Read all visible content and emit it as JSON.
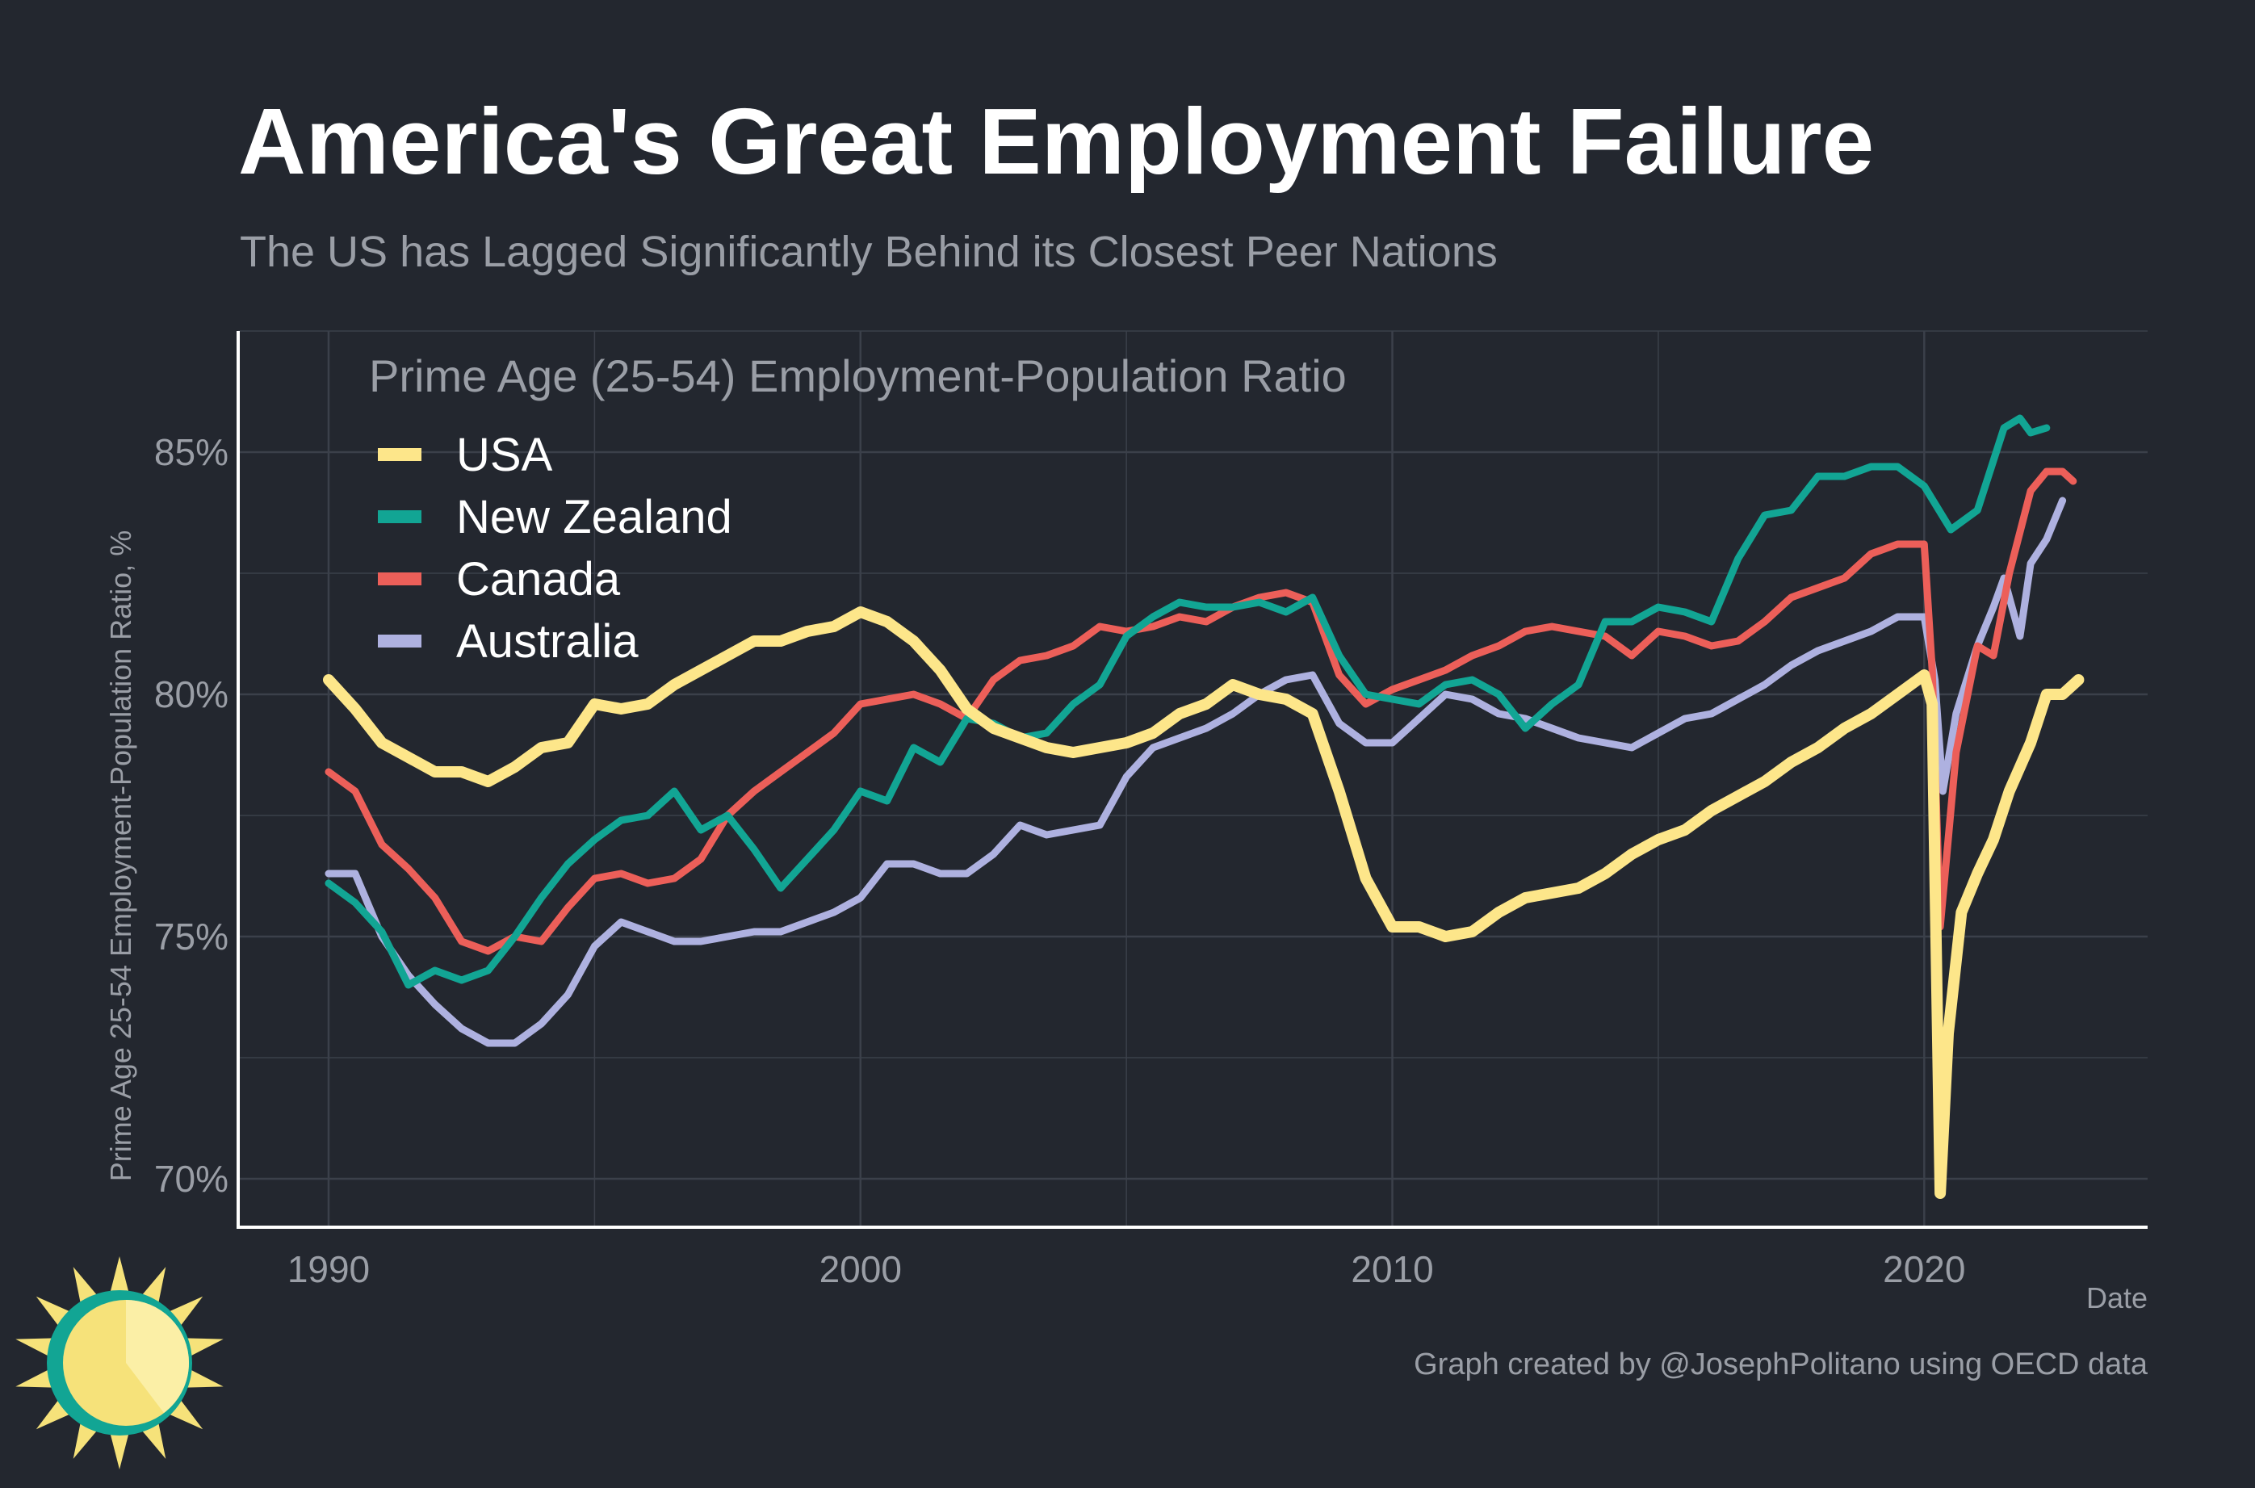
{
  "title": "America's Great Employment Failure",
  "subtitle": "The US has Lagged Significantly Behind its Closest Peer Nations",
  "caption": "Graph created by @JosephPolitano using OECD data",
  "colors": {
    "background": "#23272f",
    "grid": "#3b404a",
    "axis": "#ffffff",
    "logo_sun": "#f6e27a",
    "logo_ring": "#12a594"
  },
  "chart_data": {
    "type": "line",
    "legend_title": "Prime Age (25-54) Employment-Population Ratio",
    "legend_position": "top-left",
    "xlabel": "Date",
    "ylabel": "Prime Age 25-54 Employment-Population Ratio, %",
    "xlim": [
      1988.3,
      2024.2
    ],
    "ylim": [
      69.0,
      87.5
    ],
    "x_ticks": [
      1990,
      2000,
      2010,
      2020
    ],
    "x_tick_labels": [
      "1990",
      "2000",
      "2010",
      "2020"
    ],
    "y_ticks": [
      70,
      75,
      80,
      85
    ],
    "y_tick_labels": [
      "70%",
      "75%",
      "80%",
      "85%"
    ],
    "grid": true,
    "series": [
      {
        "name": "USA",
        "color": "#fde68a",
        "points": [
          [
            1990.0,
            80.3
          ],
          [
            1990.5,
            79.7
          ],
          [
            1991.0,
            79.0
          ],
          [
            1991.5,
            78.7
          ],
          [
            1992.0,
            78.4
          ],
          [
            1992.5,
            78.4
          ],
          [
            1993.0,
            78.2
          ],
          [
            1993.5,
            78.5
          ],
          [
            1994.0,
            78.9
          ],
          [
            1994.5,
            79.0
          ],
          [
            1995.0,
            79.8
          ],
          [
            1995.5,
            79.7
          ],
          [
            1996.0,
            79.8
          ],
          [
            1996.5,
            80.2
          ],
          [
            1997.0,
            80.5
          ],
          [
            1997.5,
            80.8
          ],
          [
            1998.0,
            81.1
          ],
          [
            1998.5,
            81.1
          ],
          [
            1999.0,
            81.3
          ],
          [
            1999.5,
            81.4
          ],
          [
            2000.0,
            81.7
          ],
          [
            2000.5,
            81.5
          ],
          [
            2001.0,
            81.1
          ],
          [
            2001.5,
            80.5
          ],
          [
            2002.0,
            79.7
          ],
          [
            2002.5,
            79.3
          ],
          [
            2003.0,
            79.1
          ],
          [
            2003.5,
            78.9
          ],
          [
            2004.0,
            78.8
          ],
          [
            2004.5,
            78.9
          ],
          [
            2005.0,
            79.0
          ],
          [
            2005.5,
            79.2
          ],
          [
            2006.0,
            79.6
          ],
          [
            2006.5,
            79.8
          ],
          [
            2007.0,
            80.2
          ],
          [
            2007.5,
            80.0
          ],
          [
            2008.0,
            79.9
          ],
          [
            2008.5,
            79.6
          ],
          [
            2009.0,
            78.0
          ],
          [
            2009.5,
            76.2
          ],
          [
            2010.0,
            75.2
          ],
          [
            2010.5,
            75.2
          ],
          [
            2011.0,
            75.0
          ],
          [
            2011.5,
            75.1
          ],
          [
            2012.0,
            75.5
          ],
          [
            2012.5,
            75.8
          ],
          [
            2013.0,
            75.9
          ],
          [
            2013.5,
            76.0
          ],
          [
            2014.0,
            76.3
          ],
          [
            2014.5,
            76.7
          ],
          [
            2015.0,
            77.0
          ],
          [
            2015.5,
            77.2
          ],
          [
            2016.0,
            77.6
          ],
          [
            2016.5,
            77.9
          ],
          [
            2017.0,
            78.2
          ],
          [
            2017.5,
            78.6
          ],
          [
            2018.0,
            78.9
          ],
          [
            2018.5,
            79.3
          ],
          [
            2019.0,
            79.6
          ],
          [
            2019.5,
            80.0
          ],
          [
            2020.0,
            80.4
          ],
          [
            2020.15,
            79.8
          ],
          [
            2020.3,
            69.7
          ],
          [
            2020.45,
            73.0
          ],
          [
            2020.7,
            75.5
          ],
          [
            2021.0,
            76.3
          ],
          [
            2021.3,
            77.0
          ],
          [
            2021.6,
            78.0
          ],
          [
            2022.0,
            79.0
          ],
          [
            2022.3,
            80.0
          ],
          [
            2022.6,
            80.0
          ],
          [
            2022.9,
            80.3
          ]
        ]
      },
      {
        "name": "New Zealand",
        "color": "#12a594",
        "points": [
          [
            1990.0,
            76.1
          ],
          [
            1990.5,
            75.7
          ],
          [
            1991.0,
            75.1
          ],
          [
            1991.5,
            74.0
          ],
          [
            1992.0,
            74.3
          ],
          [
            1992.5,
            74.1
          ],
          [
            1993.0,
            74.3
          ],
          [
            1993.5,
            75.0
          ],
          [
            1994.0,
            75.8
          ],
          [
            1994.5,
            76.5
          ],
          [
            1995.0,
            77.0
          ],
          [
            1995.5,
            77.4
          ],
          [
            1996.0,
            77.5
          ],
          [
            1996.5,
            78.0
          ],
          [
            1997.0,
            77.2
          ],
          [
            1997.5,
            77.5
          ],
          [
            1998.0,
            76.8
          ],
          [
            1998.5,
            76.0
          ],
          [
            1999.0,
            76.6
          ],
          [
            1999.5,
            77.2
          ],
          [
            2000.0,
            78.0
          ],
          [
            2000.5,
            77.8
          ],
          [
            2001.0,
            78.9
          ],
          [
            2001.5,
            78.6
          ],
          [
            2002.0,
            79.5
          ],
          [
            2002.5,
            79.4
          ],
          [
            2003.0,
            79.1
          ],
          [
            2003.5,
            79.2
          ],
          [
            2004.0,
            79.8
          ],
          [
            2004.5,
            80.2
          ],
          [
            2005.0,
            81.2
          ],
          [
            2005.5,
            81.6
          ],
          [
            2006.0,
            81.9
          ],
          [
            2006.5,
            81.8
          ],
          [
            2007.0,
            81.8
          ],
          [
            2007.5,
            81.9
          ],
          [
            2008.0,
            81.7
          ],
          [
            2008.5,
            82.0
          ],
          [
            2009.0,
            80.8
          ],
          [
            2009.5,
            80.0
          ],
          [
            2010.0,
            79.9
          ],
          [
            2010.5,
            79.8
          ],
          [
            2011.0,
            80.2
          ],
          [
            2011.5,
            80.3
          ],
          [
            2012.0,
            80.0
          ],
          [
            2012.5,
            79.3
          ],
          [
            2013.0,
            79.8
          ],
          [
            2013.5,
            80.2
          ],
          [
            2014.0,
            81.5
          ],
          [
            2014.5,
            81.5
          ],
          [
            2015.0,
            81.8
          ],
          [
            2015.5,
            81.7
          ],
          [
            2016.0,
            81.5
          ],
          [
            2016.5,
            82.8
          ],
          [
            2017.0,
            83.7
          ],
          [
            2017.5,
            83.8
          ],
          [
            2018.0,
            84.5
          ],
          [
            2018.5,
            84.5
          ],
          [
            2019.0,
            84.7
          ],
          [
            2019.5,
            84.7
          ],
          [
            2020.0,
            84.3
          ],
          [
            2020.5,
            83.4
          ],
          [
            2021.0,
            83.8
          ],
          [
            2021.5,
            85.5
          ],
          [
            2021.8,
            85.7
          ],
          [
            2022.0,
            85.4
          ],
          [
            2022.3,
            85.5
          ]
        ]
      },
      {
        "name": "Canada",
        "color": "#ec5f59",
        "points": [
          [
            1990.0,
            78.4
          ],
          [
            1990.5,
            78.0
          ],
          [
            1991.0,
            76.9
          ],
          [
            1991.5,
            76.4
          ],
          [
            1992.0,
            75.8
          ],
          [
            1992.5,
            74.9
          ],
          [
            1993.0,
            74.7
          ],
          [
            1993.5,
            75.0
          ],
          [
            1994.0,
            74.9
          ],
          [
            1994.5,
            75.6
          ],
          [
            1995.0,
            76.2
          ],
          [
            1995.5,
            76.3
          ],
          [
            1996.0,
            76.1
          ],
          [
            1996.5,
            76.2
          ],
          [
            1997.0,
            76.6
          ],
          [
            1997.5,
            77.5
          ],
          [
            1998.0,
            78.0
          ],
          [
            1998.5,
            78.4
          ],
          [
            1999.0,
            78.8
          ],
          [
            1999.5,
            79.2
          ],
          [
            2000.0,
            79.8
          ],
          [
            2000.5,
            79.9
          ],
          [
            2001.0,
            80.0
          ],
          [
            2001.5,
            79.8
          ],
          [
            2002.0,
            79.5
          ],
          [
            2002.5,
            80.3
          ],
          [
            2003.0,
            80.7
          ],
          [
            2003.5,
            80.8
          ],
          [
            2004.0,
            81.0
          ],
          [
            2004.5,
            81.4
          ],
          [
            2005.0,
            81.3
          ],
          [
            2005.5,
            81.4
          ],
          [
            2006.0,
            81.6
          ],
          [
            2006.5,
            81.5
          ],
          [
            2007.0,
            81.8
          ],
          [
            2007.5,
            82.0
          ],
          [
            2008.0,
            82.1
          ],
          [
            2008.5,
            81.9
          ],
          [
            2009.0,
            80.4
          ],
          [
            2009.5,
            79.8
          ],
          [
            2010.0,
            80.1
          ],
          [
            2010.5,
            80.3
          ],
          [
            2011.0,
            80.5
          ],
          [
            2011.5,
            80.8
          ],
          [
            2012.0,
            81.0
          ],
          [
            2012.5,
            81.3
          ],
          [
            2013.0,
            81.4
          ],
          [
            2013.5,
            81.3
          ],
          [
            2014.0,
            81.2
          ],
          [
            2014.5,
            80.8
          ],
          [
            2015.0,
            81.3
          ],
          [
            2015.5,
            81.2
          ],
          [
            2016.0,
            81.0
          ],
          [
            2016.5,
            81.1
          ],
          [
            2017.0,
            81.5
          ],
          [
            2017.5,
            82.0
          ],
          [
            2018.0,
            82.2
          ],
          [
            2018.5,
            82.4
          ],
          [
            2019.0,
            82.9
          ],
          [
            2019.5,
            83.1
          ],
          [
            2020.0,
            83.1
          ],
          [
            2020.15,
            80.5
          ],
          [
            2020.3,
            75.2
          ],
          [
            2020.6,
            78.8
          ],
          [
            2021.0,
            81.0
          ],
          [
            2021.3,
            80.8
          ],
          [
            2021.6,
            82.5
          ],
          [
            2022.0,
            84.2
          ],
          [
            2022.3,
            84.6
          ],
          [
            2022.6,
            84.6
          ],
          [
            2022.8,
            84.4
          ]
        ]
      },
      {
        "name": "Australia",
        "color": "#aeb1e0",
        "points": [
          [
            1990.0,
            76.3
          ],
          [
            1990.5,
            76.3
          ],
          [
            1991.0,
            75.0
          ],
          [
            1991.5,
            74.2
          ],
          [
            1992.0,
            73.6
          ],
          [
            1992.5,
            73.1
          ],
          [
            1993.0,
            72.8
          ],
          [
            1993.5,
            72.8
          ],
          [
            1994.0,
            73.2
          ],
          [
            1994.5,
            73.8
          ],
          [
            1995.0,
            74.8
          ],
          [
            1995.5,
            75.3
          ],
          [
            1996.0,
            75.1
          ],
          [
            1996.5,
            74.9
          ],
          [
            1997.0,
            74.9
          ],
          [
            1997.5,
            75.0
          ],
          [
            1998.0,
            75.1
          ],
          [
            1998.5,
            75.1
          ],
          [
            1999.0,
            75.3
          ],
          [
            1999.5,
            75.5
          ],
          [
            2000.0,
            75.8
          ],
          [
            2000.5,
            76.5
          ],
          [
            2001.0,
            76.5
          ],
          [
            2001.5,
            76.3
          ],
          [
            2002.0,
            76.3
          ],
          [
            2002.5,
            76.7
          ],
          [
            2003.0,
            77.3
          ],
          [
            2003.5,
            77.1
          ],
          [
            2004.0,
            77.2
          ],
          [
            2004.5,
            77.3
          ],
          [
            2005.0,
            78.3
          ],
          [
            2005.5,
            78.9
          ],
          [
            2006.0,
            79.1
          ],
          [
            2006.5,
            79.3
          ],
          [
            2007.0,
            79.6
          ],
          [
            2007.5,
            80.0
          ],
          [
            2008.0,
            80.3
          ],
          [
            2008.5,
            80.4
          ],
          [
            2009.0,
            79.4
          ],
          [
            2009.5,
            79.0
          ],
          [
            2010.0,
            79.0
          ],
          [
            2010.5,
            79.5
          ],
          [
            2011.0,
            80.0
          ],
          [
            2011.5,
            79.9
          ],
          [
            2012.0,
            79.6
          ],
          [
            2012.5,
            79.5
          ],
          [
            2013.0,
            79.3
          ],
          [
            2013.5,
            79.1
          ],
          [
            2014.0,
            79.0
          ],
          [
            2014.5,
            78.9
          ],
          [
            2015.0,
            79.2
          ],
          [
            2015.5,
            79.5
          ],
          [
            2016.0,
            79.6
          ],
          [
            2016.5,
            79.9
          ],
          [
            2017.0,
            80.2
          ],
          [
            2017.5,
            80.6
          ],
          [
            2018.0,
            80.9
          ],
          [
            2018.5,
            81.1
          ],
          [
            2019.0,
            81.3
          ],
          [
            2019.5,
            81.6
          ],
          [
            2020.0,
            81.6
          ],
          [
            2020.2,
            80.3
          ],
          [
            2020.35,
            78.0
          ],
          [
            2020.6,
            79.6
          ],
          [
            2021.0,
            81.0
          ],
          [
            2021.3,
            81.8
          ],
          [
            2021.5,
            82.4
          ],
          [
            2021.8,
            81.2
          ],
          [
            2022.0,
            82.7
          ],
          [
            2022.3,
            83.2
          ],
          [
            2022.6,
            84.0
          ]
        ]
      }
    ]
  }
}
